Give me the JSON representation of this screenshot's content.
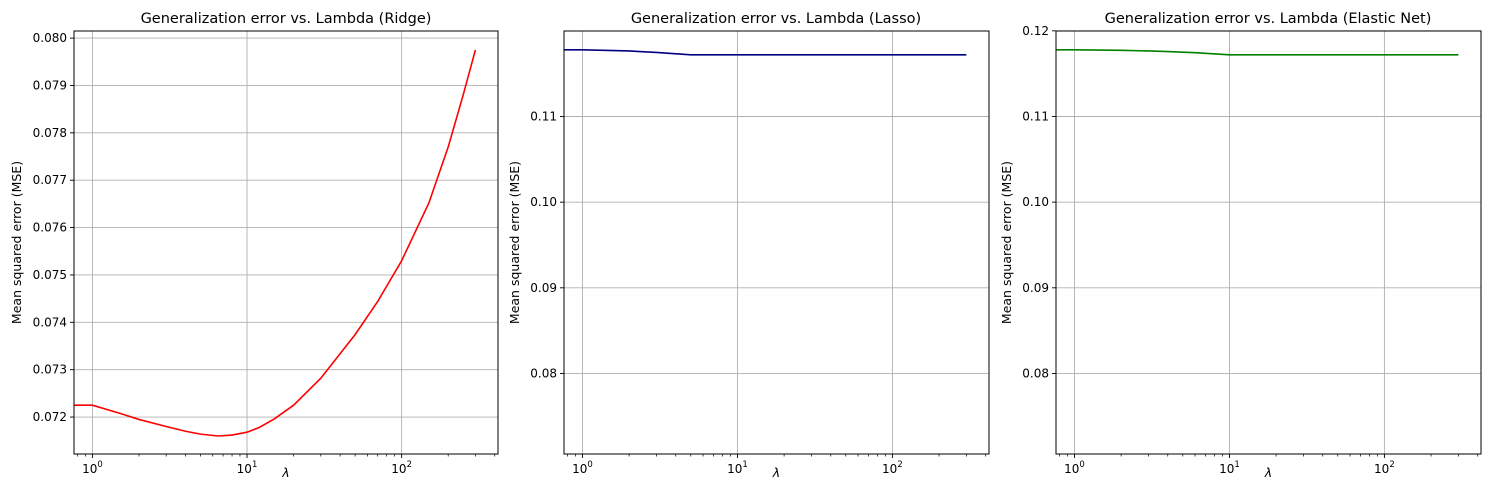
{
  "chart_data": [
    {
      "type": "line",
      "title": "Generalization error vs. Lambda (Ridge)",
      "xlabel": "λ",
      "ylabel": "Mean squared error (MSE)",
      "xscale": "log",
      "xlim": [
        0.76,
        420
      ],
      "ylim": [
        0.07122,
        0.08015
      ],
      "x_ticks": [
        {
          "value": 1,
          "label": "10",
          "exp": "0"
        },
        {
          "value": 10,
          "label": "10",
          "exp": "1"
        },
        {
          "value": 100,
          "label": "10",
          "exp": "2"
        }
      ],
      "y_ticks": [
        0.072,
        0.073,
        0.074,
        0.075,
        0.076,
        0.077,
        0.078,
        0.079,
        0.08
      ],
      "y_tick_labels": [
        "0.072",
        "0.073",
        "0.074",
        "0.075",
        "0.076",
        "0.077",
        "0.078",
        "0.079",
        "0.080"
      ],
      "grid": true,
      "color": "#ff0000",
      "series": [
        {
          "x": [
            0.76,
            1,
            1.5,
            2,
            3,
            4,
            5,
            6.5,
            8,
            10,
            12,
            15,
            20,
            30,
            50,
            70,
            100,
            150,
            200,
            250,
            300
          ],
          "y": [
            0.07225,
            0.07225,
            0.07208,
            0.07195,
            0.0718,
            0.0717,
            0.07164,
            0.0716,
            0.07162,
            0.07168,
            0.07178,
            0.07196,
            0.07225,
            0.07282,
            0.07374,
            0.07444,
            0.0753,
            0.07652,
            0.0777,
            0.0788,
            0.07975
          ]
        }
      ]
    },
    {
      "type": "line",
      "title": "Generalization error vs. Lambda (Lasso)",
      "xlabel": "λ",
      "ylabel": "Mean squared error (MSE)",
      "xscale": "log",
      "xlim": [
        0.76,
        420
      ],
      "ylim": [
        0.0706,
        0.11998
      ],
      "x_ticks": [
        {
          "value": 1,
          "label": "10",
          "exp": "0"
        },
        {
          "value": 10,
          "label": "10",
          "exp": "1"
        },
        {
          "value": 100,
          "label": "10",
          "exp": "2"
        }
      ],
      "y_ticks": [
        0.08,
        0.09,
        0.1,
        0.11
      ],
      "y_tick_labels": [
        "0.08",
        "0.09",
        "0.10",
        "0.11"
      ],
      "grid": true,
      "color": "#00007f",
      "series": [
        {
          "x": [
            0.76,
            1,
            2,
            3,
            5,
            10,
            20,
            50,
            100,
            200,
            300
          ],
          "y": [
            0.11778,
            0.11778,
            0.11765,
            0.11748,
            0.1172,
            0.1172,
            0.1172,
            0.1172,
            0.1172,
            0.1172,
            0.1172
          ]
        }
      ]
    },
    {
      "type": "line",
      "title": "Generalization error vs. Lambda (Elastic Net)",
      "xlabel": "λ",
      "ylabel": "Mean squared error (MSE)",
      "xscale": "log",
      "xlim": [
        0.76,
        420
      ],
      "ylim": [
        0.0706,
        0.11998
      ],
      "x_ticks": [
        {
          "value": 1,
          "label": "10",
          "exp": "0"
        },
        {
          "value": 10,
          "label": "10",
          "exp": "1"
        },
        {
          "value": 100,
          "label": "10",
          "exp": "2"
        }
      ],
      "y_ticks": [
        0.08,
        0.09,
        0.1,
        0.11,
        0.12
      ],
      "y_tick_labels": [
        "0.08",
        "0.09",
        "0.10",
        "0.11",
        "0.12"
      ],
      "grid": true,
      "color": "#008000",
      "series": [
        {
          "x": [
            0.76,
            1,
            2,
            3,
            4,
            6,
            10,
            20,
            50,
            100,
            200,
            300
          ],
          "y": [
            0.11778,
            0.11778,
            0.11772,
            0.11765,
            0.11758,
            0.11745,
            0.1172,
            0.1172,
            0.1172,
            0.1172,
            0.1172,
            0.1172
          ]
        }
      ]
    }
  ]
}
